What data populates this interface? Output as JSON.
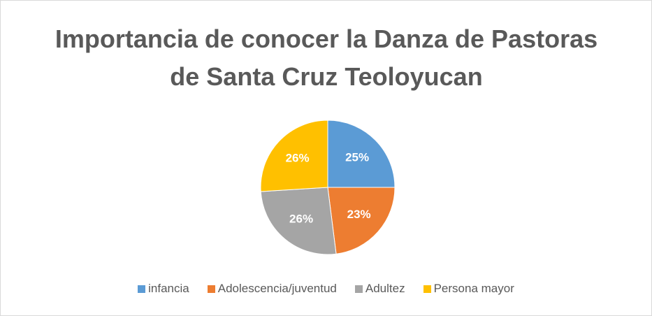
{
  "chart_data": {
    "type": "pie",
    "title": "Importancia de conocer la Danza de Pastoras de Santa Cruz Teoloyucan",
    "categories": [
      "infancia",
      "Adolescencia/juventud",
      "Adultez",
      "Persona mayor"
    ],
    "values": [
      25,
      23,
      26,
      26
    ],
    "value_labels": [
      "25%",
      "23%",
      "26%",
      "26%"
    ],
    "colors": [
      "#5b9bd5",
      "#ed7d31",
      "#a5a5a5",
      "#ffc000"
    ],
    "legend": "bottom"
  }
}
